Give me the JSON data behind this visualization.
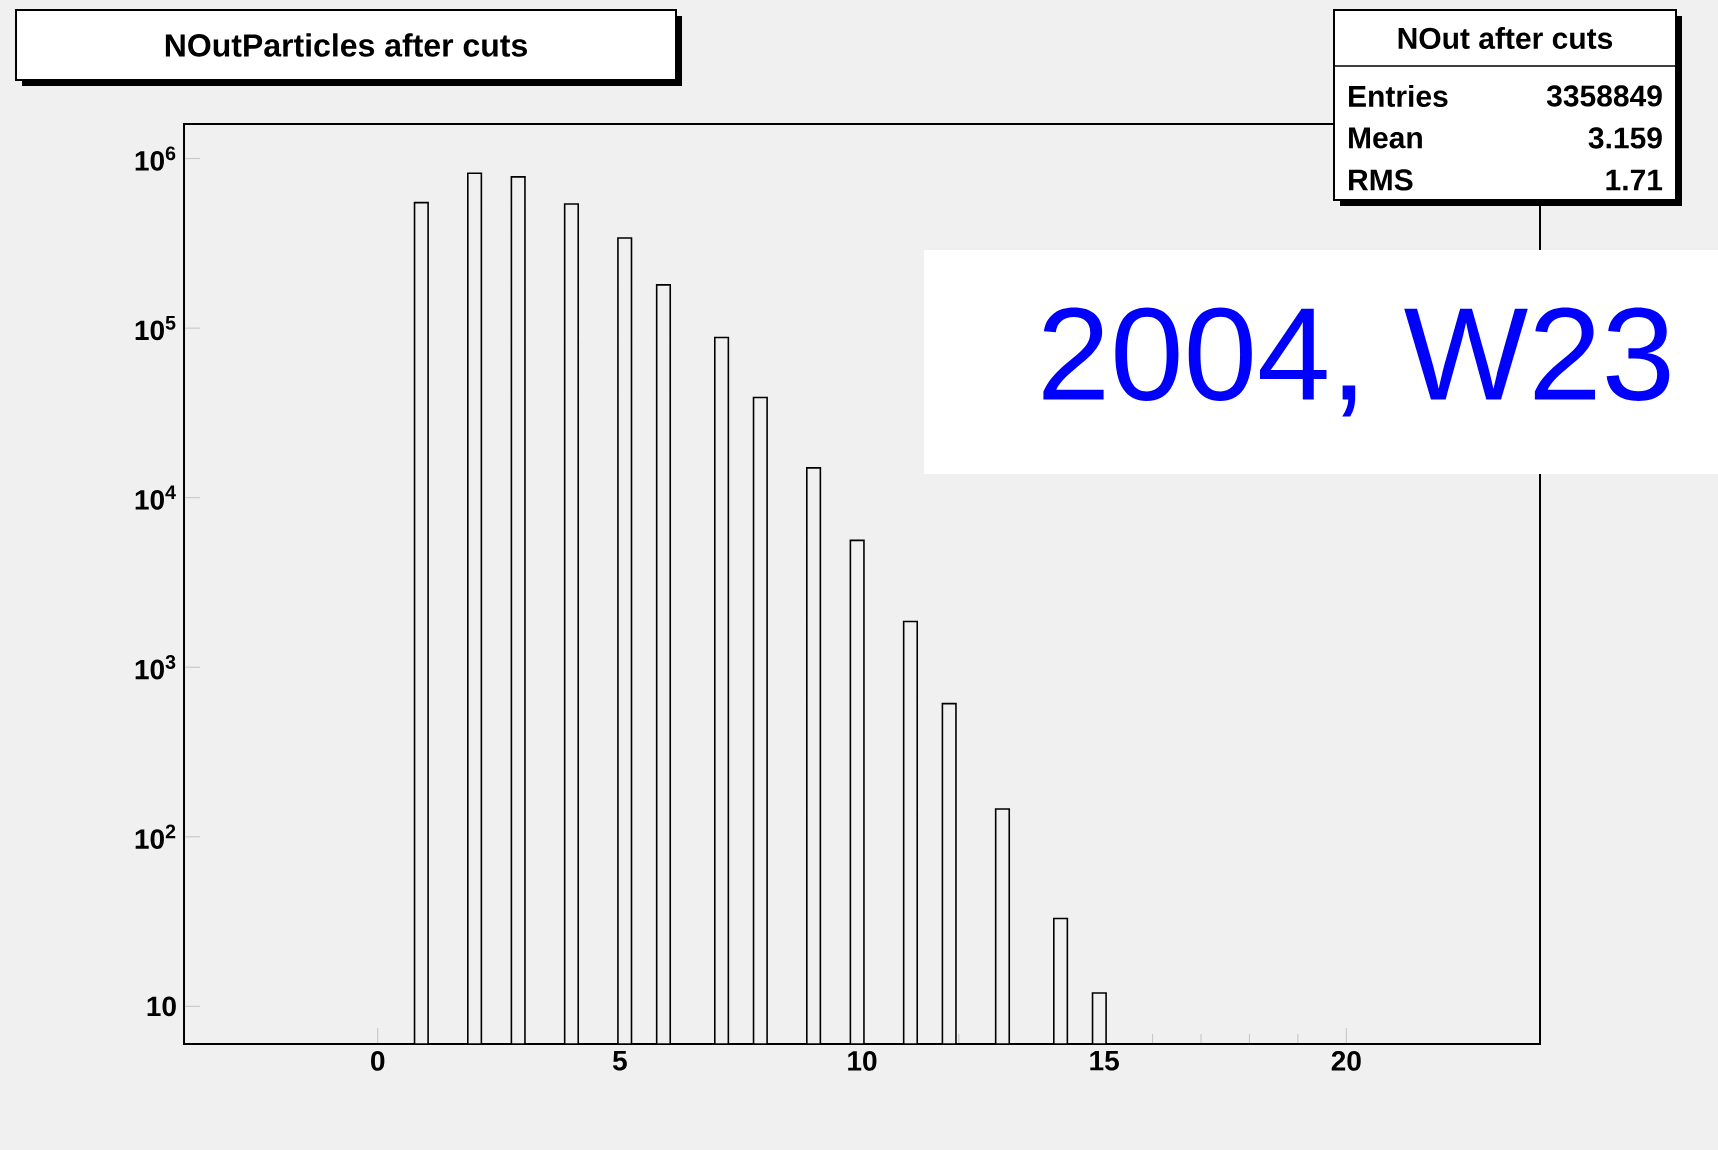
{
  "chart_data": {
    "type": "bar",
    "title": "NOutParticles after cuts",
    "x": [
      0.9,
      2.0,
      2.9,
      4.0,
      5.1,
      5.9,
      7.1,
      7.9,
      9.0,
      9.9,
      11.0,
      11.8,
      12.9,
      14.1,
      14.9
    ],
    "values": [
      550000,
      820000,
      780000,
      540000,
      340000,
      180000,
      88000,
      39000,
      15000,
      5600,
      1860,
      610,
      146,
      33,
      12
    ],
    "color": "#f0f0f0",
    "xlim": [
      -4,
      24
    ],
    "xticks": [
      0,
      5,
      10,
      15,
      20
    ],
    "ylim": [
      6,
      1600000
    ],
    "log": "y",
    "yticks": [
      10,
      {
        "value": 100,
        "label": "10$^{2}$"
      },
      {
        "value": 1000,
        "label": "10$^{3}$"
      },
      {
        "value": 10000,
        "label": "10$^{4}$"
      },
      {
        "value": 100000,
        "label": "10$^{5}$"
      },
      {
        "value": 1000000,
        "label": "10$^{6}$"
      }
    ],
    "annotations": [
      "NOut after cuts",
      "Entries",
      "3358849",
      "Mean",
      "3.159",
      "RMS",
      "1.71",
      "2004, W23"
    ]
  }
}
